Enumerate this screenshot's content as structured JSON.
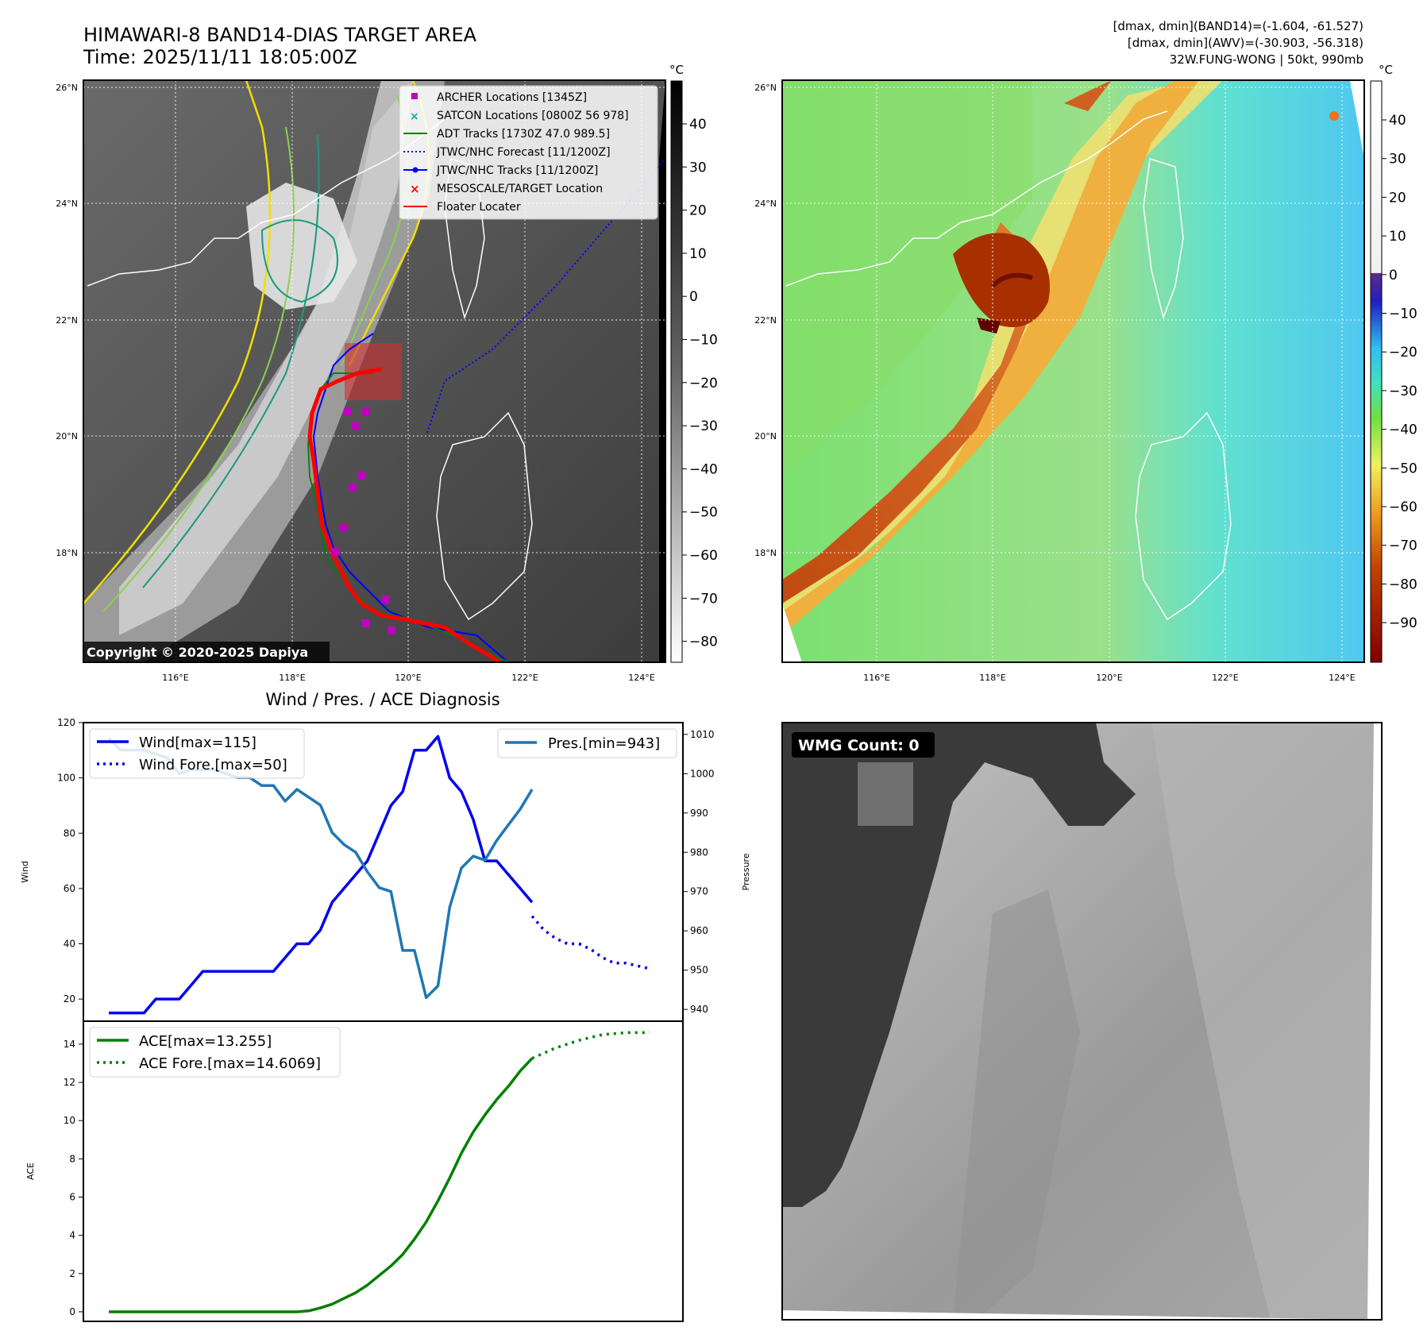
{
  "header": {
    "title": "HIMAWARI-8 BAND14-DIAS TARGET AREA",
    "time": "Time: 2025/11/11 18:05:00Z",
    "info_line1": "[dmax, dmin](BAND14)=(-1.604, -61.527)",
    "info_line2": "[dmax, dmin](AWV)=(-30.903, -56.318)",
    "info_line3": "32W.FUNG-WONG | 50kt, 990mb"
  },
  "map": {
    "lat_labels": [
      "26°N",
      "24°N",
      "22°N",
      "20°N",
      "18°N"
    ],
    "lon_labels": [
      "116°E",
      "118°E",
      "120°E",
      "122°E",
      "124°E"
    ],
    "copyright": "Copyright © 2020-2025 Dapiya",
    "legend": [
      {
        "label": "ARCHER Locations [1345Z]",
        "color": "#c000c0"
      },
      {
        "label": "SATCON Locations [0800Z 56 978]",
        "color": "#00b0b0"
      },
      {
        "label": "ADT Tracks [1730Z 47.0 989.5]",
        "color": "#008000"
      },
      {
        "label": "JTWC/NHC Forecast [11/1200Z]",
        "color": "#0000ff"
      },
      {
        "label": "JTWC/NHC Tracks [11/1200Z]",
        "color": "#0000ff"
      },
      {
        "label": "MESOSCALE/TARGET Location",
        "color": "#ff0000"
      },
      {
        "label": "Floater Locater",
        "color": "#ff0000"
      }
    ]
  },
  "colorbar_gray": {
    "unit": "°C",
    "ticks": [
      "40",
      "30",
      "20",
      "10",
      "0",
      "−10",
      "−20",
      "−30",
      "−40",
      "−50",
      "−60",
      "−70",
      "−80"
    ]
  },
  "colorbar_color": {
    "unit": "°C",
    "ticks": [
      "40",
      "30",
      "20",
      "10",
      "0",
      "−10",
      "−20",
      "−30",
      "−40",
      "−50",
      "−60",
      "−70",
      "−80",
      "−90"
    ]
  },
  "wmg": {
    "label": "WMG Count: 0"
  },
  "chart_data": [
    {
      "type": "line",
      "title": "Wind / Pres. / ACE Diagnosis",
      "ylabel": "Wind",
      "ylabel_right": "Pressure",
      "ylim": [
        12,
        120
      ],
      "ylim_right": [
        937,
        1013
      ],
      "yticks": [
        20,
        40,
        60,
        80,
        100,
        120
      ],
      "yticks_right": [
        940,
        950,
        960,
        970,
        980,
        990,
        1000,
        1010
      ],
      "series": [
        {
          "name": "Wind[max=115]",
          "style": "solid",
          "color": "#0000ee",
          "x": [
            0,
            1,
            2,
            3,
            4,
            5,
            6,
            7,
            8,
            9,
            10,
            11,
            12,
            13,
            14,
            15,
            16,
            17,
            18,
            19,
            20,
            21,
            22,
            23,
            24,
            25,
            26,
            27,
            28,
            29,
            30,
            31,
            32,
            33,
            34,
            35,
            36
          ],
          "values": [
            15,
            15,
            15,
            15,
            20,
            20,
            20,
            25,
            30,
            30,
            30,
            30,
            30,
            30,
            30,
            35,
            40,
            40,
            45,
            55,
            60,
            65,
            70,
            80,
            90,
            95,
            110,
            110,
            115,
            100,
            95,
            85,
            70,
            70,
            65,
            60,
            55
          ]
        },
        {
          "name": "Wind Fore.[max=50]",
          "style": "dotted",
          "color": "#0000ee",
          "x": [
            36,
            37,
            38,
            39,
            40,
            41,
            42,
            43,
            44,
            45,
            46
          ],
          "values": [
            50,
            45,
            42,
            40,
            40,
            38,
            35,
            33,
            33,
            32,
            31
          ]
        },
        {
          "name": "Pres.[min=943]",
          "style": "solid",
          "color": "#1f77b4",
          "axis": "right",
          "x": [
            0,
            1,
            2,
            3,
            4,
            5,
            6,
            7,
            8,
            9,
            10,
            11,
            12,
            13,
            14,
            15,
            16,
            17,
            18,
            19,
            20,
            21,
            22,
            23,
            24,
            25,
            26,
            27,
            28,
            29,
            30,
            31,
            32,
            33,
            34,
            35,
            36
          ],
          "values": [
            1009,
            1006,
            1006,
            1006,
            1005,
            1004,
            1000,
            1001,
            1001,
            1001,
            1000,
            999,
            999,
            997,
            997,
            993,
            996,
            994,
            992,
            985,
            982,
            980,
            975,
            971,
            970,
            955,
            955,
            943,
            946,
            966,
            976,
            979,
            978,
            983,
            987,
            991,
            996
          ]
        }
      ]
    },
    {
      "type": "line",
      "ylabel": "ACE",
      "ylim": [
        -0.5,
        15.2
      ],
      "yticks": [
        0,
        2,
        4,
        6,
        8,
        10,
        12,
        14
      ],
      "series": [
        {
          "name": "ACE[max=13.255]",
          "style": "solid",
          "color": "#008000",
          "x": [
            0,
            2,
            4,
            6,
            8,
            10,
            12,
            14,
            16,
            17,
            18,
            19,
            20,
            21,
            22,
            23,
            24,
            25,
            26,
            27,
            28,
            29,
            30,
            31,
            32,
            33,
            34,
            35,
            36
          ],
          "values": [
            0,
            0,
            0,
            0,
            0,
            0,
            0,
            0,
            0,
            0.05,
            0.2,
            0.4,
            0.7,
            1.0,
            1.4,
            1.9,
            2.4,
            3.0,
            3.8,
            4.7,
            5.8,
            7.0,
            8.3,
            9.4,
            10.3,
            11.1,
            11.8,
            12.6,
            13.255
          ]
        },
        {
          "name": "ACE Fore.[max=14.6069]",
          "style": "dotted",
          "color": "#008000",
          "x": [
            36,
            38,
            40,
            42,
            44,
            46
          ],
          "values": [
            13.255,
            13.8,
            14.2,
            14.5,
            14.6,
            14.6069
          ]
        }
      ]
    }
  ]
}
